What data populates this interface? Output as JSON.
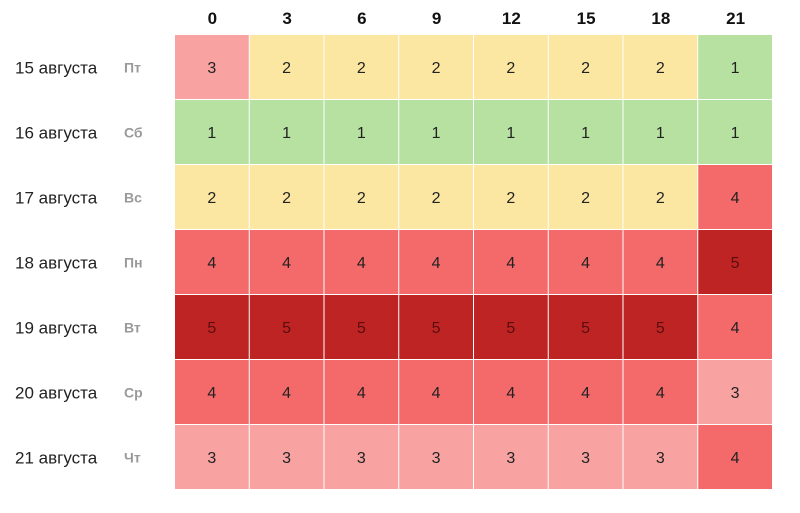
{
  "chart_data": {
    "type": "heatmap",
    "columns": [
      "0",
      "3",
      "6",
      "9",
      "12",
      "15",
      "18",
      "21"
    ],
    "rows": [
      {
        "date": "15 августа",
        "weekday": "Пт"
      },
      {
        "date": "16 августа",
        "weekday": "Сб"
      },
      {
        "date": "17 августа",
        "weekday": "Вс"
      },
      {
        "date": "18 августа",
        "weekday": "Пн"
      },
      {
        "date": "19 августа",
        "weekday": "Вт"
      },
      {
        "date": "20 августа",
        "weekday": "Ср"
      },
      {
        "date": "21 августа",
        "weekday": "Чт"
      }
    ],
    "values": [
      [
        3,
        2,
        2,
        2,
        2,
        2,
        2,
        1
      ],
      [
        1,
        1,
        1,
        1,
        1,
        1,
        1,
        1
      ],
      [
        2,
        2,
        2,
        2,
        2,
        2,
        2,
        4
      ],
      [
        4,
        4,
        4,
        4,
        4,
        4,
        4,
        5
      ],
      [
        5,
        5,
        5,
        5,
        5,
        5,
        5,
        4
      ],
      [
        4,
        4,
        4,
        4,
        4,
        4,
        4,
        3
      ],
      [
        3,
        3,
        3,
        3,
        3,
        3,
        3,
        4
      ]
    ],
    "color_scale": {
      "1": "#b7e1a1",
      "2": "#fbe6a2",
      "3": "#f8a2a2",
      "4": "#f46a6a",
      "5": "#bf2424"
    }
  }
}
